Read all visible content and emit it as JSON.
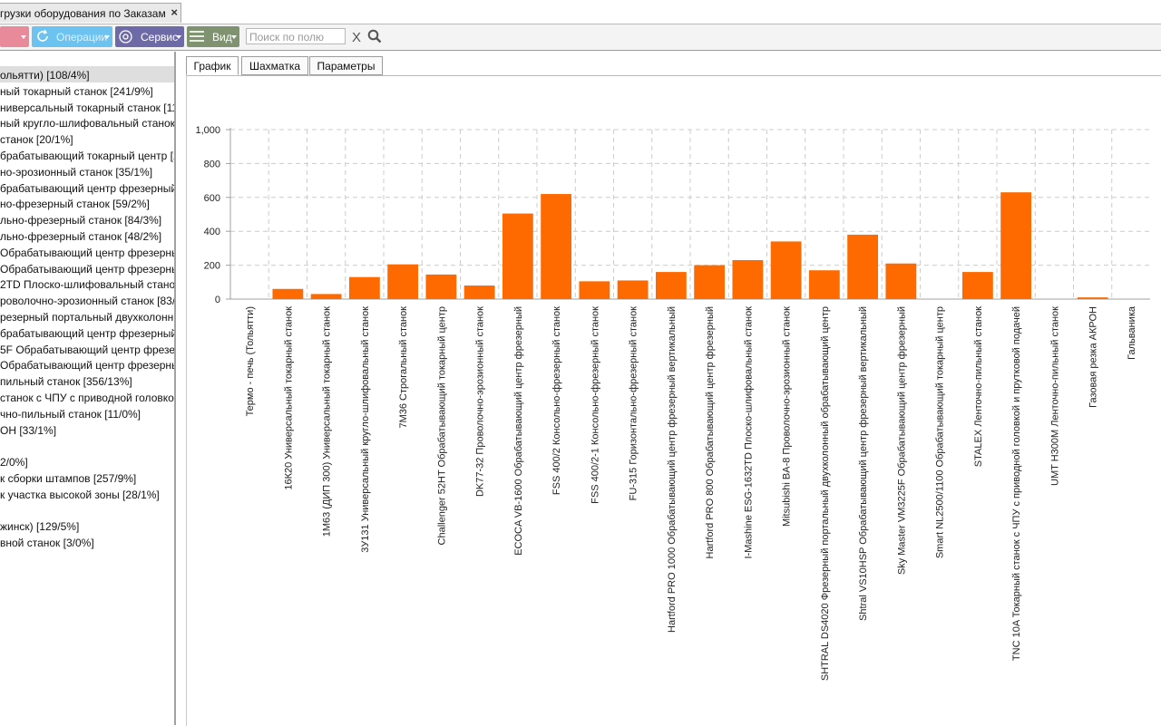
{
  "window": {
    "tab_title": "грузки оборудования по Заказам"
  },
  "toolbar": {
    "ops_label": "Операции",
    "service_label": "Сервис",
    "view_label": "Вид",
    "search_placeholder": "Поиск по полю",
    "clear_label": "X"
  },
  "tree": {
    "items": [
      "ольятти) [108/4%]",
      "ный токарный станок [241/9%]",
      "ниверсальный токарный станок [111",
      "ный кругло-шлифовальный станок",
      " станок [20/1%]",
      "брабатывающий токарный центр [2",
      "но-эрозионный станок [35/1%]",
      "брабатывающий центр фрезерный",
      "но-фрезерный станок [59/2%]",
      "льно-фрезерный станок [84/3%]",
      "льно-фрезерный станок [48/2%]",
      " Обрабатывающий центр фрезерный",
      "Обрабатывающий центр фрезерный",
      "2TD Плоско-шлифовальный станок",
      "роволочно-эрозионный станок [83/3%",
      "резерный портальный двухколонный",
      "брабатывающий центр фрезерный",
      "5F Обрабатывающий центр фрезер",
      " Обрабатывающий центр фрезерный",
      "пильный станок [356/13%]",
      " станок с ЧПУ с приводной головко",
      "чно-пильный станок [11/0%]",
      "ОН [33/1%]",
      "",
      "2/0%]",
      "к сборки штампов [257/9%]",
      "к участка высокой зоны [28/1%]",
      "",
      "жинск) [129/5%]",
      "вной станок [3/0%]"
    ]
  },
  "tabs": {
    "chart": "График",
    "grid": "Шахматка",
    "params": "Параметры"
  },
  "chart_data": {
    "type": "bar",
    "ylim": [
      0,
      1000
    ],
    "yticks": [
      "0",
      "200",
      "400",
      "600",
      "800",
      "1,000"
    ],
    "categories": [
      "Термо - печь (Тольятти)",
      "16К20 Универсальный токарный станок",
      "1М63 (ДИП 300) Универсальный токарный станок",
      "3У131 Универсальный кругло-шлифовальный станок",
      "7М36 Строгальный станок",
      "Challenger 52HT Обрабатывающий токарный центр",
      "DK77-32 Проволочно-эрозионный станок",
      "ECOCA VB-1600 Обрабатывающий центр фрезерный",
      "FSS 400/2 Консольно-фрезерный станок",
      "FSS 400/2-1 Консольно-фрезерный станок",
      "FU-315 Горизонтально-фрезерный станок",
      "Hartford PRO 1000 Обрабатывающий центр фрезерный вертикальный",
      "Hartford PRO 800 Обрабатывающий центр фрезерный",
      "I-Mashine ESG-1632TD Плоско-шлифовальный станок",
      "Mitsubishi BA-8 Проволочно-эрозионный станок",
      "SHTRAL DS4020 Фрезерный портальный двухколонный обрабатывающий центр",
      "Shtral VS10HSP Обрабатывающий центр фрезерный вертикальный",
      "Sky Master VM3225F Обрабатывающий центр фрезерный",
      "Smart NL2500/1100 Обрабатывающий токарный центр",
      "STALEX Ленточно-пильный станок",
      "TNC 10A Токарный станок с ЧПУ с приводной головкой и прутковой подачей",
      "UMT H300M Ленточно-пильный станок",
      "Газовая резка АКРОН",
      "Гальваника"
    ],
    "values": [
      0,
      60,
      30,
      130,
      205,
      145,
      80,
      505,
      620,
      105,
      110,
      160,
      200,
      230,
      340,
      170,
      380,
      210,
      0,
      160,
      630,
      0,
      10,
      0
    ],
    "colors": {
      "bar": "#ff6a00",
      "axis": "#a0a0a0",
      "grid": "#cccccc"
    }
  }
}
